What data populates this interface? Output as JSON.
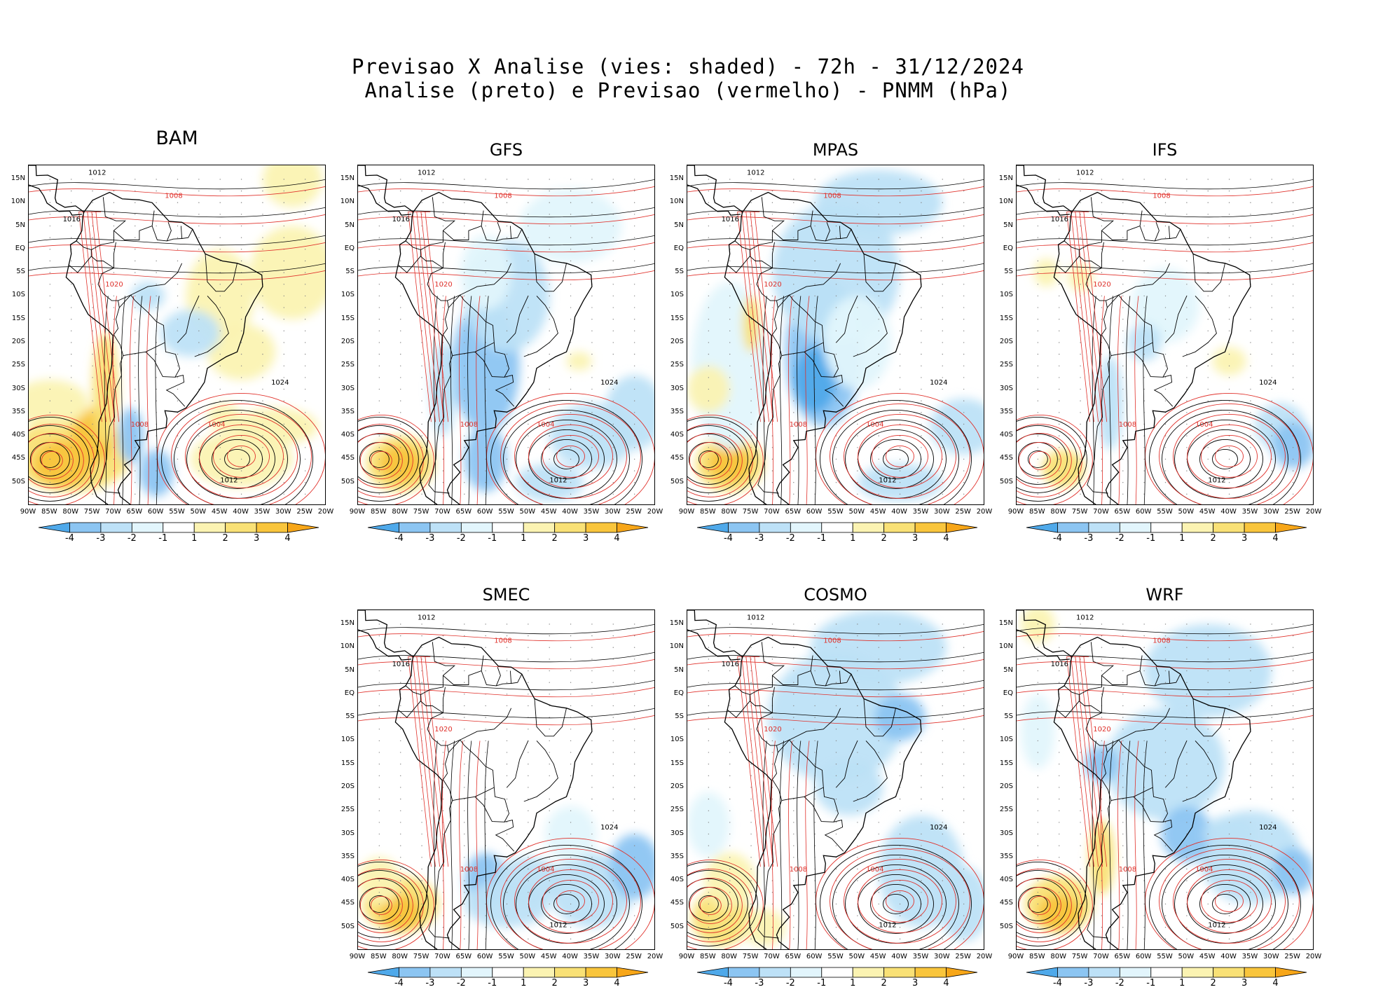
{
  "header": {
    "line1": "Previsao X Analise (vies: shaded) - 72h - 31/12/2024",
    "line2": "Analise (preto) e Previsao (vermelho) - PNMM (hPa)"
  },
  "lat_labels": [
    "15N",
    "10N",
    "5N",
    "EQ",
    "5S",
    "10S",
    "15S",
    "20S",
    "25S",
    "30S",
    "35S",
    "40S",
    "45S",
    "50S"
  ],
  "lon_labels": [
    "90W",
    "85W",
    "80W",
    "75W",
    "70W",
    "65W",
    "60W",
    "55W",
    "50W",
    "45W",
    "40W",
    "35W",
    "30W",
    "25W",
    "20W"
  ],
  "colorbar": {
    "labels": [
      "-4",
      "-3",
      "-2",
      "-1",
      "1",
      "2",
      "3",
      "4"
    ],
    "colors": [
      "#4fa9ea",
      "#8cc5f2",
      "#bde1f7",
      "#e2f5fc",
      "#ffffff",
      "#fbf3b2",
      "#f9e176",
      "#f9c53c",
      "#f7a618"
    ]
  },
  "colors": {
    "analysis_contour": "#000000",
    "forecast_contour": "#e0302a",
    "coast": "#000000"
  },
  "panels": [
    {
      "name": "BAM",
      "contour_labels": [
        "1012",
        "1008",
        "1016",
        "1020",
        "1024",
        "1004"
      ]
    },
    {
      "name": "GFS",
      "contour_labels": [
        "1012",
        "1008",
        "1016",
        "1020",
        "1024",
        "1004"
      ]
    },
    {
      "name": "MPAS",
      "contour_labels": [
        "1012",
        "1008",
        "1016",
        "1020",
        "1024",
        "1004"
      ]
    },
    {
      "name": "IFS",
      "contour_labels": [
        "1012",
        "1008",
        "1016",
        "1020",
        "1024",
        "1004"
      ]
    },
    {
      "name": "SMEC",
      "contour_labels": [
        "1012",
        "1008",
        "1016",
        "1020",
        "1024",
        "1004"
      ]
    },
    {
      "name": "COSMO",
      "contour_labels": [
        "1012",
        "1008",
        "1016",
        "1020",
        "1024",
        "1004"
      ]
    },
    {
      "name": "WRF",
      "contour_labels": [
        "1012",
        "1008",
        "1016",
        "1020",
        "1024",
        "1004"
      ]
    }
  ]
}
